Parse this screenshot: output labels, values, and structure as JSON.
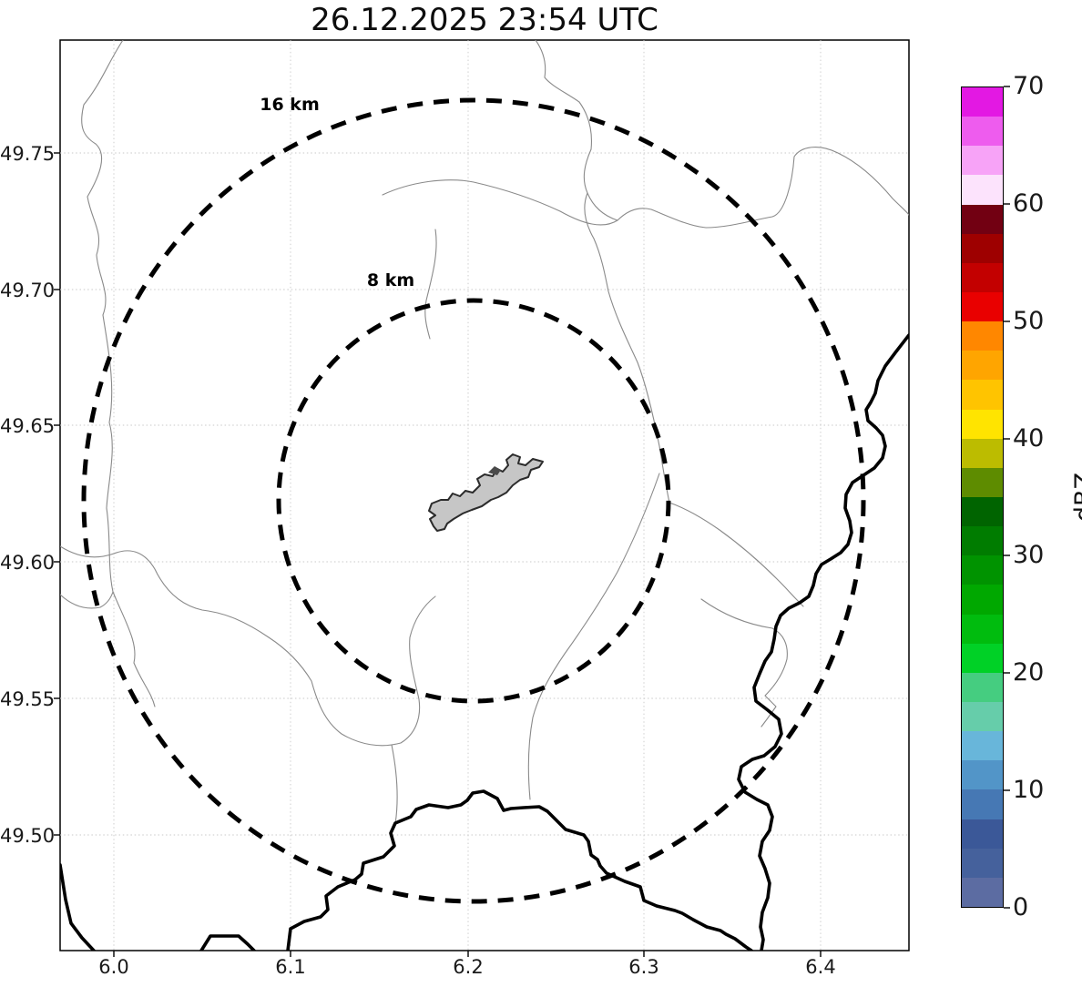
{
  "title": "26.12.2025 23:54 UTC",
  "map": {
    "range_rings": [
      {
        "label": "16 km"
      },
      {
        "label": "8 km"
      }
    ],
    "x_axis": {
      "ticks": [
        "6.0",
        "6.1",
        "6.2",
        "6.3",
        "6.4"
      ]
    },
    "y_axis": {
      "ticks": [
        "49.75",
        "49.70",
        "49.65",
        "49.60",
        "49.55",
        "49.50"
      ]
    }
  },
  "colorbar": {
    "label": "dBZ",
    "ticks": [
      "70",
      "60",
      "50",
      "40",
      "30",
      "20",
      "10",
      "0"
    ],
    "min": 0,
    "max": 70,
    "band_colors_top_to_bottom": [
      "#e318e3",
      "#ee5cee",
      "#f7a3f7",
      "#fce3fc",
      "#720012",
      "#9e0000",
      "#c30000",
      "#e90000",
      "#ff8700",
      "#ffa500",
      "#ffc400",
      "#ffe400",
      "#bcbc00",
      "#5e8c00",
      "#006400",
      "#007c00",
      "#009300",
      "#00a800",
      "#00bc0e",
      "#00d126",
      "#45cd80",
      "#66cdaa",
      "#68b6da",
      "#5295c8",
      "#4678b4",
      "#3b5898",
      "#45619c",
      "#5c6ca2"
    ]
  },
  "style_colors": {
    "country_border": "#000000",
    "admin_boundary": "#8a8a8a",
    "city_fill": "#c6c6c6",
    "grid": "#c9c9c9",
    "range_ring": "#000000"
  }
}
